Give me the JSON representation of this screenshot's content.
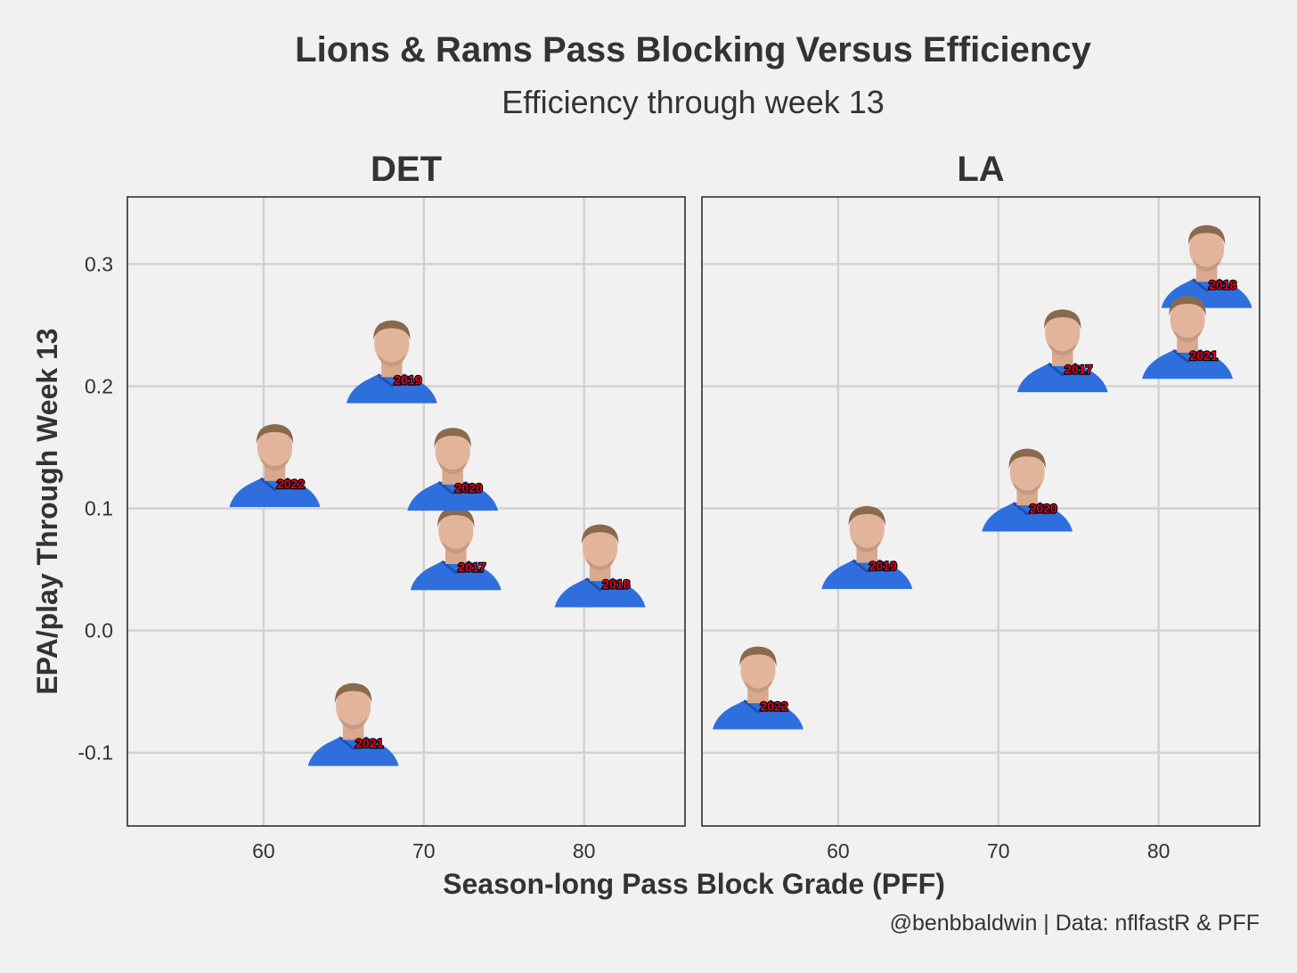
{
  "title": "Lions & Rams Pass Blocking Versus Efficiency",
  "subtitle": "Efficiency through week 13",
  "caption": "@benbbaldwin | Data: nflfastR & PFF",
  "colors": {
    "background": "#f1f1f1",
    "jersey": "#2f6fdd",
    "collar": "#f0c020",
    "skin": "#e2b49c",
    "hair": "#8a6a4c",
    "label_fill": "#e8001c"
  },
  "chart_data": {
    "type": "scatter",
    "xlabel": "Season-long Pass Block Grade (PFF)",
    "ylabel": "EPA/play Through Week 13",
    "xlim": [
      51.5,
      86.3
    ],
    "ylim": [
      -0.16,
      0.355
    ],
    "x_ticks": [
      60,
      70,
      80
    ],
    "x_tick_labels": [
      "60",
      "70",
      "80"
    ],
    "y_ticks": [
      -0.1,
      0.0,
      0.1,
      0.2,
      0.3
    ],
    "y_tick_labels": [
      "-0.1",
      "0.0",
      "0.1",
      "0.2",
      "0.3"
    ],
    "grid": true,
    "marker": "quarterback headshot image",
    "facets": [
      {
        "name": "DET",
        "points": [
          {
            "season": "2017",
            "x": 72.0,
            "y": 0.052
          },
          {
            "season": "2018",
            "x": 81.0,
            "y": 0.038
          },
          {
            "season": "2019",
            "x": 68.0,
            "y": 0.205
          },
          {
            "season": "2020",
            "x": 71.8,
            "y": 0.117
          },
          {
            "season": "2021",
            "x": 65.6,
            "y": -0.092
          },
          {
            "season": "2022",
            "x": 60.7,
            "y": 0.12
          }
        ]
      },
      {
        "name": "LA",
        "points": [
          {
            "season": "2017",
            "x": 74.0,
            "y": 0.214
          },
          {
            "season": "2018",
            "x": 83.0,
            "y": 0.283
          },
          {
            "season": "2019",
            "x": 61.8,
            "y": 0.053
          },
          {
            "season": "2020",
            "x": 71.8,
            "y": 0.1
          },
          {
            "season": "2021",
            "x": 81.8,
            "y": 0.225
          },
          {
            "season": "2022",
            "x": 55.0,
            "y": -0.062
          }
        ]
      }
    ]
  }
}
